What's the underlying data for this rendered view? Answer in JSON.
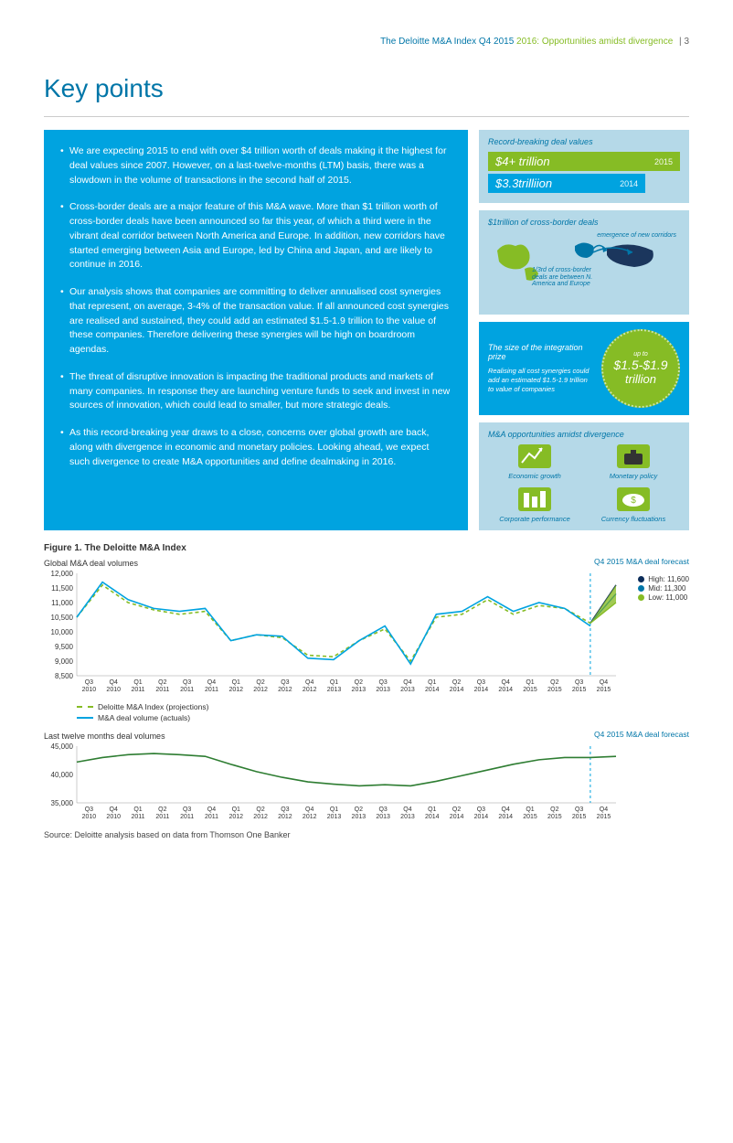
{
  "header": {
    "title": "The Deloitte M&A Index Q4 2015",
    "subtitle": "2016: Opportunities amidst divergence",
    "page": "3"
  },
  "heading": "Key points",
  "bullets": [
    "We are expecting 2015 to end with over $4 trillion worth of deals making it the highest for deal values since 2007. However, on a last-twelve-months (LTM) basis, there was a slowdown in the volume of transactions in the second half of 2015.",
    "Cross-border deals are a major feature of this M&A wave. More than $1 trillion worth of cross-border deals have been announced so far this year, of which a third were in the vibrant deal corridor between North America and Europe. In addition, new corridors have started emerging between Asia and Europe, led by China and Japan, and are likely to continue in 2016.",
    "Our analysis shows that companies are committing to deliver annualised cost synergies that represent, on average, 3-4% of the transaction value. If all announced cost synergies are realised and sustained, they could add an estimated $1.5-1.9 trillion to the value of these companies. Therefore delivering these synergies will be high on boardroom agendas.",
    "The threat of disruptive innovation is impacting the traditional products and markets of many companies. In response they are launching venture funds to seek and invest in new sources of innovation, which could lead to smaller, but more strategic deals.",
    "As this record-breaking year draws to a close, concerns over global growth are back, along with divergence in economic and monetary policies. Looking ahead, we expect such divergence to create M&A opportunities and define dealmaking in 2016."
  ],
  "side": {
    "box1": {
      "title": "Record-breaking deal values",
      "bar1_val": "$4+ trillion",
      "bar1_yr": "2015",
      "bar2_val": "$3.3trilliion",
      "bar2_yr": "2014"
    },
    "box2": {
      "title": "$1trillion of cross-border deals",
      "note1": "emergence of new corridors",
      "note2": "1/3rd of cross-border deals are between N. America and Europe"
    },
    "box3": {
      "title": "The size of the integration prize",
      "text": "Realising all cost synergies could add an estimated $1.5-1.9 trillion to value of companies",
      "upto": "up to",
      "amount": "$1.5-$1.9",
      "unit": "trillion"
    },
    "box4": {
      "title": "M&A opportunities amidst divergence",
      "items": [
        "Economic growth",
        "Monetary policy",
        "Corporate performance",
        "Currency fluctuations"
      ]
    }
  },
  "fig1": {
    "title": "Figure 1. The Deloitte M&A Index",
    "chart_a": {
      "ylabel": "Global M&A deal volumes",
      "ymin": 8500,
      "ymax": 12000,
      "ystep": 500,
      "yticks": [
        "12,000",
        "11,500",
        "11,000",
        "10,500",
        "10,000",
        "9,500",
        "9,000",
        "8,500"
      ],
      "actuals": [
        10500,
        11700,
        11100,
        10800,
        10700,
        10800,
        9700,
        9900,
        9850,
        9100,
        9050,
        9700,
        10200,
        8900,
        10600,
        10700,
        11200,
        10700,
        11000,
        10800,
        10200
      ],
      "proj": [
        10500,
        11600,
        11000,
        10750,
        10600,
        10700,
        9700,
        9900,
        9800,
        9200,
        9150,
        9700,
        10100,
        9000,
        10500,
        10600,
        11100,
        10600,
        10900,
        10800,
        10300
      ],
      "actuals_color": "#00a3e0",
      "proj_color": "#86bc25",
      "forecast_label": "Q4 2015 M&A deal forecast",
      "forecast": [
        {
          "label": "High: 11,600",
          "v": 11600,
          "c": "#0d2d5a"
        },
        {
          "label": "Mid:  11,300",
          "v": 11300,
          "c": "#0076a8"
        },
        {
          "label": "Low:  11,000",
          "v": 11000,
          "c": "#86bc25"
        }
      ]
    },
    "legend_a": "Deloitte M&A Index (projections)",
    "legend_b": "M&A deal volume (actuals)",
    "chart_b": {
      "ylabel": "Last twelve months deal volumes",
      "ymin": 35000,
      "ymax": 45000,
      "ystep": 5000,
      "yticks": [
        "45,000",
        "40,000",
        "35,000"
      ],
      "line": [
        42200,
        43000,
        43500,
        43700,
        43500,
        43200,
        41800,
        40500,
        39500,
        38700,
        38300,
        38000,
        38200,
        38000,
        38800,
        39800,
        40800,
        41800,
        42600,
        43000,
        43000,
        43200
      ],
      "line_color": "#2e7d32",
      "forecast_label": "Q4 2015 M&A deal forecast"
    },
    "xticks": [
      "Q3 2010",
      "Q4 2010",
      "Q1 2011",
      "Q2 2011",
      "Q3 2011",
      "Q4 2011",
      "Q1 2012",
      "Q2 2012",
      "Q3 2012",
      "Q4 2012",
      "Q1 2013",
      "Q2 2013",
      "Q3 2013",
      "Q4 2013",
      "Q1 2014",
      "Q2 2014",
      "Q3 2014",
      "Q4 2014",
      "Q1 2015",
      "Q2 2015",
      "Q3 2015",
      "Q4 2015"
    ]
  },
  "source": "Source: Deloitte analysis based on data from Thomson One Banker"
}
